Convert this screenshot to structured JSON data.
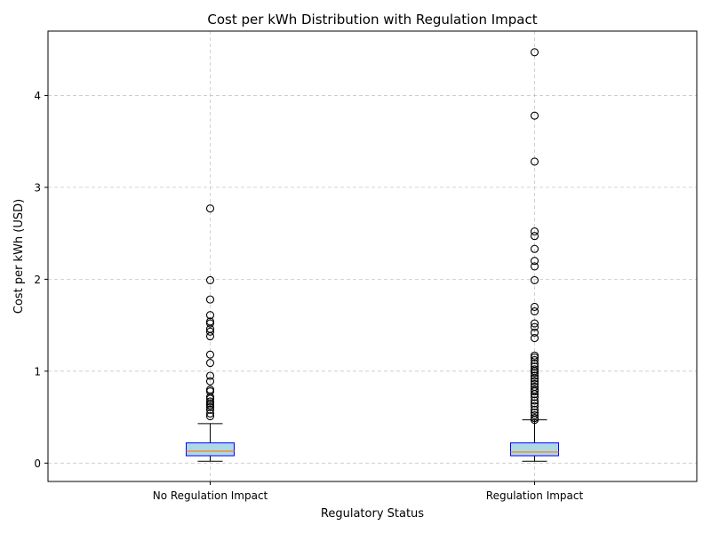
{
  "chart_data": {
    "type": "box",
    "title": "Cost per kWh Distribution with Regulation Impact",
    "xlabel": "Regulatory Status",
    "ylabel": "Cost per kWh (USD)",
    "ylim": [
      -0.2,
      4.7
    ],
    "yticks": [
      0,
      1,
      2,
      3,
      4
    ],
    "grid": true,
    "box_fill": "#add8e6",
    "box_edge": "#0000ff",
    "median_color": "#ff7f0e",
    "categories": [
      "No Regulation Impact",
      "Regulation Impact"
    ],
    "boxes": [
      {
        "name": "No Regulation Impact",
        "whisker_low": 0.02,
        "q1": 0.08,
        "median": 0.13,
        "q3": 0.22,
        "whisker_high": 0.43,
        "outliers": [
          0.51,
          0.54,
          0.58,
          0.61,
          0.63,
          0.65,
          0.67,
          0.7,
          0.72,
          0.78,
          0.8,
          0.89,
          0.95,
          1.09,
          1.18,
          1.38,
          1.43,
          1.46,
          1.52,
          1.54,
          1.61,
          1.78,
          1.99,
          2.77
        ]
      },
      {
        "name": "Regulation Impact",
        "whisker_low": 0.02,
        "q1": 0.08,
        "median": 0.12,
        "q3": 0.22,
        "whisker_high": 0.47,
        "outliers": [
          0.47,
          0.49,
          0.52,
          0.55,
          0.58,
          0.62,
          0.65,
          0.68,
          0.72,
          0.75,
          0.78,
          0.8,
          0.83,
          0.86,
          0.89,
          0.92,
          0.95,
          0.98,
          1.0,
          1.02,
          1.05,
          1.08,
          1.12,
          1.15,
          1.17,
          1.36,
          1.42,
          1.48,
          1.52,
          1.65,
          1.7,
          1.99,
          2.14,
          2.2,
          2.33,
          2.47,
          2.52,
          3.28,
          3.78,
          4.47
        ]
      }
    ]
  }
}
